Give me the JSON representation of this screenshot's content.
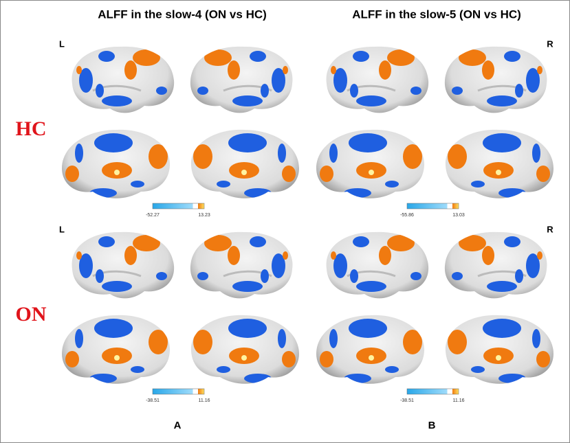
{
  "columns": [
    {
      "title": "ALFF in the slow-4 (ON vs HC)",
      "label": "A"
    },
    {
      "title": "ALFF in the slow-5 (ON vs HC)",
      "label": "B"
    }
  ],
  "rows": [
    {
      "label": "HC",
      "colorbars": [
        {
          "min": "-52.27",
          "max": "13.23"
        },
        {
          "min": "-55.86",
          "max": "13.03"
        }
      ]
    },
    {
      "label": "ON",
      "colorbars": [
        {
          "min": "-38.51",
          "max": "11.16"
        },
        {
          "min": "-38.51",
          "max": "11.16"
        }
      ]
    }
  ],
  "hemispheres": [
    "L",
    "R"
  ]
}
